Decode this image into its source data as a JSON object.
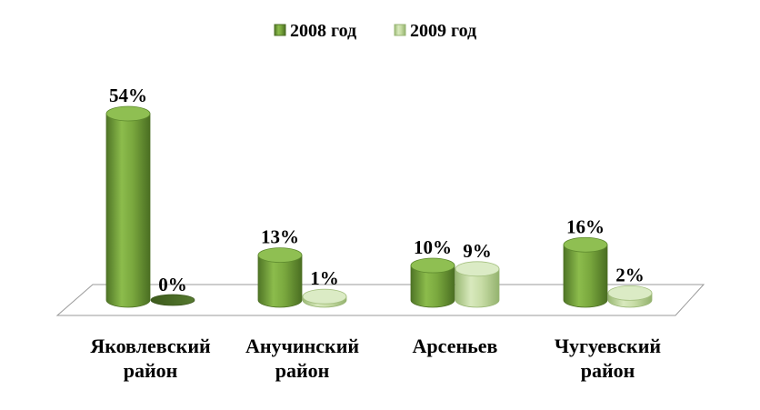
{
  "chart_data": {
    "type": "bar",
    "style": "3d-cylinder",
    "categories": [
      [
        "Яковлевский",
        "район"
      ],
      [
        "Анучинский",
        "район"
      ],
      [
        "Арсеньев"
      ],
      [
        "Чугуевский",
        "район"
      ]
    ],
    "series": [
      {
        "name": "2008 год",
        "values": [
          54,
          13,
          10,
          16
        ],
        "labels": [
          "54%",
          "13%",
          "10%",
          "16%"
        ],
        "color": "#76a03a"
      },
      {
        "name": "2009 год",
        "values": [
          0,
          1,
          9,
          2
        ],
        "labels": [
          "0%",
          "1%",
          "9%",
          "2%"
        ],
        "color": "#c5dca1"
      }
    ],
    "ylim": [
      0,
      54
    ],
    "grid": false,
    "legend_position": "top-center",
    "title": "",
    "xlabel": "",
    "ylabel": ""
  }
}
